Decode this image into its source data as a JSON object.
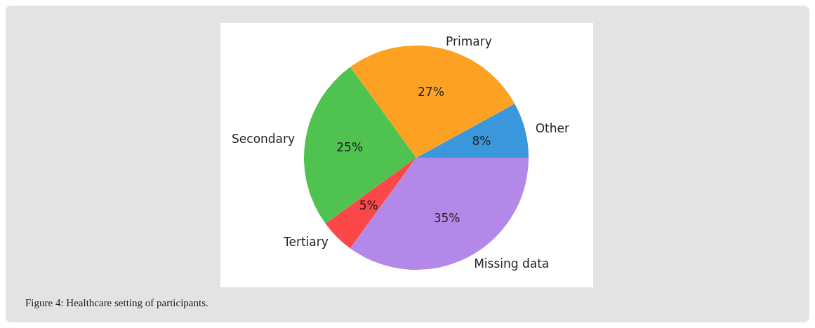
{
  "chart_data": {
    "type": "pie",
    "categories": [
      "Other",
      "Primary",
      "Secondary",
      "Tertiary",
      "Missing data"
    ],
    "values": [
      8,
      27,
      25,
      5,
      35
    ],
    "value_labels": [
      "8%",
      "27%",
      "25%",
      "5%",
      "35%"
    ],
    "colors": [
      "#3b97dc",
      "#fca121",
      "#4fc24f",
      "#fb4747",
      "#b388e8"
    ],
    "annotations": [
      "Figure 4: Healthcare setting of participants."
    ]
  }
}
